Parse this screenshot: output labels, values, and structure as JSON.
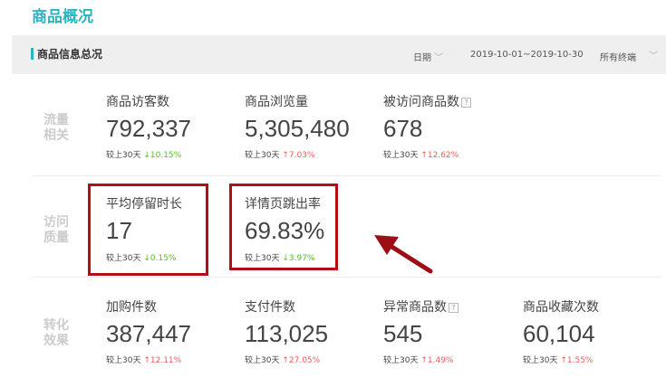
{
  "page_title": "商品概况",
  "section": {
    "title": "商品信息总况",
    "date_label": "日期",
    "date_range": "2019-10-01~2019-10-30",
    "terminal": "所有终端"
  },
  "compare_label": "较上30天",
  "accent_color": "#2bb3c0",
  "highlight_color": "#b50d14",
  "groups": [
    {
      "label": "流量相关",
      "metrics": [
        {
          "title": "商品访客数",
          "value": "792,337",
          "change": "10.15%",
          "dir": "down"
        },
        {
          "title": "商品浏览量",
          "value": "5,305,480",
          "change": "7.03%",
          "dir": "up"
        },
        {
          "title": "被访问商品数",
          "value": "678",
          "change": "12.62%",
          "dir": "up",
          "help": "?"
        }
      ]
    },
    {
      "label": "访问质量",
      "metrics": [
        {
          "title": "平均停留时长",
          "value": "17",
          "change": "0.15%",
          "dir": "down"
        },
        {
          "title": "详情页跳出率",
          "value": "69.83%",
          "change": "3.97%",
          "dir": "down"
        }
      ]
    },
    {
      "label": "转化效果",
      "metrics": [
        {
          "title": "加购件数",
          "value": "387,447",
          "change": "12.11%",
          "dir": "up"
        },
        {
          "title": "支付件数",
          "value": "113,025",
          "change": "27.05%",
          "dir": "up"
        },
        {
          "title": "异常商品数",
          "value": "545",
          "change": "1.49%",
          "dir": "up",
          "help": "?"
        },
        {
          "title": "商品收藏次数",
          "value": "60,104",
          "change": "1.55%",
          "dir": "up"
        }
      ]
    }
  ]
}
